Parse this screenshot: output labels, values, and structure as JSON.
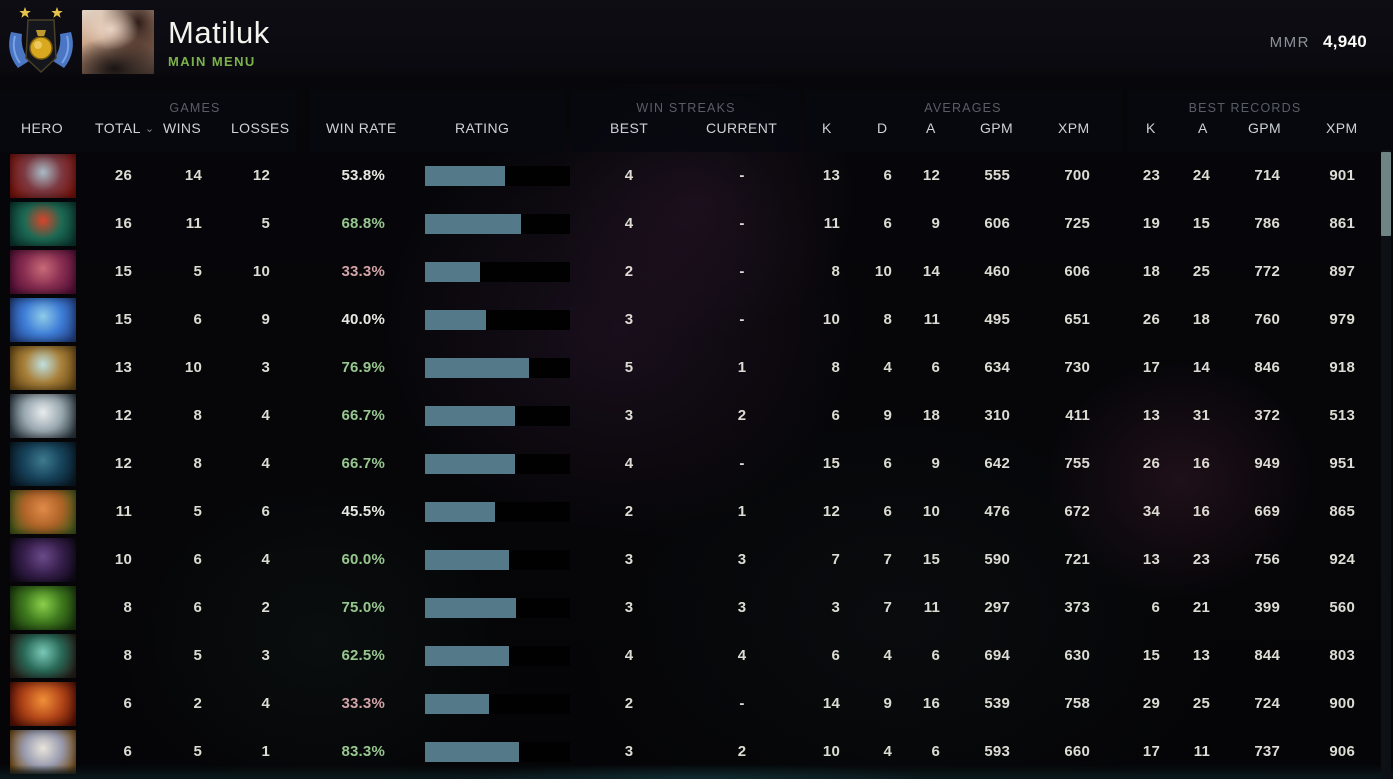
{
  "header": {
    "player_name": "Matiluk",
    "subtitle": "MAIN MENU",
    "mmr_label": "MMR",
    "mmr_value": "4,940",
    "rank_medal": "divine-rank-medal"
  },
  "table": {
    "groups": {
      "games": "GAMES",
      "win_streaks": "WIN STREAKS",
      "averages": "AVERAGES",
      "best_records": "BEST RECORDS"
    },
    "columns": {
      "hero": "HERO",
      "total": "TOTAL",
      "wins": "WINS",
      "losses": "LOSSES",
      "win_rate": "WIN RATE",
      "rating": "RATING",
      "best": "BEST",
      "current": "CURRENT",
      "k": "K",
      "d": "D",
      "a": "A",
      "gpm": "GPM",
      "xpm": "XPM",
      "rec_k": "K",
      "rec_a": "A",
      "rec_gpm": "GPM",
      "rec_xpm": "XPM"
    },
    "sort_indicator": "⌄",
    "sorted_by": "total"
  },
  "colors": {
    "bar_fill": "#547a8a",
    "win_green": "#97c78f",
    "win_pink": "#d2a3a7",
    "win_neutral": "#e8e8e2",
    "accent_green": "#7cb249"
  },
  "rows": [
    {
      "hero": "hero-1",
      "portrait": [
        "#a8bcc8",
        "#7d3a42",
        "#7a130c"
      ],
      "total": "26",
      "wins": "14",
      "losses": "12",
      "win_rate": "53.8%",
      "win_rate_tone": "neutral",
      "rating_pct": 55,
      "best": "4",
      "current": "-",
      "k": "13",
      "d": "6",
      "a": "12",
      "gpm": "555",
      "xpm": "700",
      "rec_k": "23",
      "rec_a": "24",
      "rec_gpm": "714",
      "rec_xpm": "901"
    },
    {
      "hero": "hero-2",
      "portrait": [
        "#d8442a",
        "#1d6a54",
        "#0c3a33"
      ],
      "total": "16",
      "wins": "11",
      "losses": "5",
      "win_rate": "68.8%",
      "win_rate_tone": "green",
      "rating_pct": 66,
      "best": "4",
      "current": "-",
      "k": "11",
      "d": "6",
      "a": "9",
      "gpm": "606",
      "xpm": "725",
      "rec_k": "19",
      "rec_a": "15",
      "rec_gpm": "786",
      "rec_xpm": "861"
    },
    {
      "hero": "hero-3",
      "portrait": [
        "#c86a78",
        "#8a2f52",
        "#561038"
      ],
      "total": "15",
      "wins": "5",
      "losses": "10",
      "win_rate": "33.3%",
      "win_rate_tone": "pink",
      "rating_pct": 38,
      "best": "2",
      "current": "-",
      "k": "8",
      "d": "10",
      "a": "14",
      "gpm": "460",
      "xpm": "606",
      "rec_k": "18",
      "rec_a": "25",
      "rec_gpm": "772",
      "rec_xpm": "897"
    },
    {
      "hero": "hero-4",
      "portrait": [
        "#8ecbe8",
        "#3f7ed8",
        "#24448a"
      ],
      "total": "15",
      "wins": "6",
      "losses": "9",
      "win_rate": "40.0%",
      "win_rate_tone": "neutral",
      "rating_pct": 42,
      "best": "3",
      "current": "-",
      "k": "10",
      "d": "8",
      "a": "11",
      "gpm": "495",
      "xpm": "651",
      "rec_k": "26",
      "rec_a": "18",
      "rec_gpm": "760",
      "rec_xpm": "979"
    },
    {
      "hero": "hero-5",
      "portrait": [
        "#bfe0e0",
        "#a8803a",
        "#6a4a16"
      ],
      "total": "13",
      "wins": "10",
      "losses": "3",
      "win_rate": "76.9%",
      "win_rate_tone": "green",
      "rating_pct": 72,
      "best": "5",
      "current": "1",
      "k": "8",
      "d": "4",
      "a": "6",
      "gpm": "634",
      "xpm": "730",
      "rec_k": "17",
      "rec_a": "14",
      "rec_gpm": "846",
      "rec_xpm": "918"
    },
    {
      "hero": "hero-6",
      "portrait": [
        "#e8ecee",
        "#9aa8b0",
        "#2e3c44"
      ],
      "total": "12",
      "wins": "8",
      "losses": "4",
      "win_rate": "66.7%",
      "win_rate_tone": "green",
      "rating_pct": 62,
      "best": "3",
      "current": "2",
      "k": "6",
      "d": "9",
      "a": "18",
      "gpm": "310",
      "xpm": "411",
      "rec_k": "13",
      "rec_a": "31",
      "rec_gpm": "372",
      "rec_xpm": "513"
    },
    {
      "hero": "hero-7",
      "portrait": [
        "#3e7a8e",
        "#17445c",
        "#0a1c2a"
      ],
      "total": "12",
      "wins": "8",
      "losses": "4",
      "win_rate": "66.7%",
      "win_rate_tone": "green",
      "rating_pct": 62,
      "best": "4",
      "current": "-",
      "k": "15",
      "d": "6",
      "a": "9",
      "gpm": "642",
      "xpm": "755",
      "rec_k": "26",
      "rec_a": "16",
      "rec_gpm": "949",
      "rec_xpm": "951"
    },
    {
      "hero": "hero-8",
      "portrait": [
        "#e08a4a",
        "#b06428",
        "#475c1c"
      ],
      "total": "11",
      "wins": "5",
      "losses": "6",
      "win_rate": "45.5%",
      "win_rate_tone": "neutral",
      "rating_pct": 48,
      "best": "2",
      "current": "1",
      "k": "12",
      "d": "6",
      "a": "10",
      "gpm": "476",
      "xpm": "672",
      "rec_k": "34",
      "rec_a": "16",
      "rec_gpm": "669",
      "rec_xpm": "865"
    },
    {
      "hero": "hero-9",
      "portrait": [
        "#6a4a8a",
        "#38204e",
        "#120a1c"
      ],
      "total": "10",
      "wins": "6",
      "losses": "4",
      "win_rate": "60.0%",
      "win_rate_tone": "green",
      "rating_pct": 58,
      "best": "3",
      "current": "3",
      "k": "7",
      "d": "7",
      "a": "15",
      "gpm": "590",
      "xpm": "721",
      "rec_k": "13",
      "rec_a": "23",
      "rec_gpm": "756",
      "rec_xpm": "924"
    },
    {
      "hero": "hero-10",
      "portrait": [
        "#8ad04a",
        "#3f7a1e",
        "#1c3a0e"
      ],
      "total": "8",
      "wins": "6",
      "losses": "2",
      "win_rate": "75.0%",
      "win_rate_tone": "green",
      "rating_pct": 63,
      "best": "3",
      "current": "3",
      "k": "3",
      "d": "7",
      "a": "11",
      "gpm": "297",
      "xpm": "373",
      "rec_k": "6",
      "rec_a": "21",
      "rec_gpm": "399",
      "rec_xpm": "560"
    },
    {
      "hero": "hero-11",
      "portrait": [
        "#7ac8b8",
        "#2a6a58",
        "#27201a"
      ],
      "total": "8",
      "wins": "5",
      "losses": "3",
      "win_rate": "62.5%",
      "win_rate_tone": "green",
      "rating_pct": 58,
      "best": "4",
      "current": "4",
      "k": "6",
      "d": "4",
      "a": "6",
      "gpm": "694",
      "xpm": "630",
      "rec_k": "15",
      "rec_a": "13",
      "rec_gpm": "844",
      "rec_xpm": "803"
    },
    {
      "hero": "hero-12",
      "portrait": [
        "#f09038",
        "#b5481a",
        "#5c1206"
      ],
      "total": "6",
      "wins": "2",
      "losses": "4",
      "win_rate": "33.3%",
      "win_rate_tone": "pink",
      "rating_pct": 44,
      "best": "2",
      "current": "-",
      "k": "14",
      "d": "9",
      "a": "16",
      "gpm": "539",
      "xpm": "758",
      "rec_k": "29",
      "rec_a": "25",
      "rec_gpm": "724",
      "rec_xpm": "900"
    },
    {
      "hero": "hero-13",
      "portrait": [
        "#e8e4da",
        "#9a9cb0",
        "#7a5018"
      ],
      "total": "6",
      "wins": "5",
      "losses": "1",
      "win_rate": "83.3%",
      "win_rate_tone": "green",
      "rating_pct": 65,
      "best": "3",
      "current": "2",
      "k": "10",
      "d": "4",
      "a": "6",
      "gpm": "593",
      "xpm": "660",
      "rec_k": "17",
      "rec_a": "11",
      "rec_gpm": "737",
      "rec_xpm": "906"
    }
  ]
}
